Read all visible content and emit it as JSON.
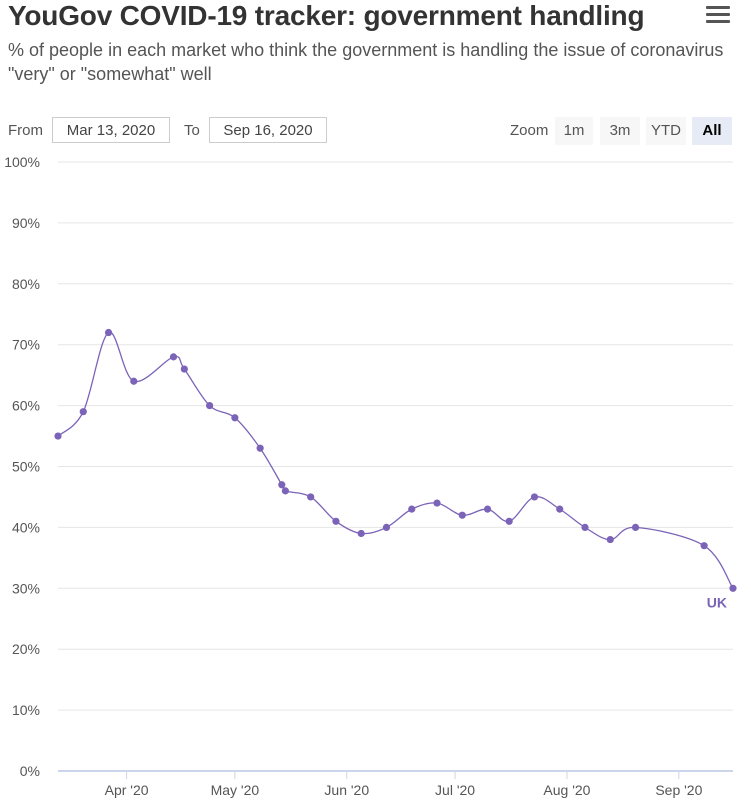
{
  "header": {
    "title": "YouGov COVID-19 tracker: government handling",
    "subtitle": "% of people in each market who think the government is handling the issue of coronavirus \"very\" or \"somewhat\" well",
    "menu_icon": "hamburger-menu-icon"
  },
  "range": {
    "from_label": "From",
    "from_value": "Mar 13, 2020",
    "to_label": "To",
    "to_value": "Sep 16, 2020"
  },
  "zoom": {
    "label": "Zoom",
    "buttons": [
      "1m",
      "3m",
      "YTD",
      "All"
    ],
    "active": "All"
  },
  "chart_data": {
    "type": "line",
    "title": "YouGov COVID-19 tracker: government handling",
    "subtitle": "% of people in each market who think the government is handling the issue of coronavirus \"very\" or \"somewhat\" well",
    "x_range": [
      "2020-03-13",
      "2020-09-16"
    ],
    "ylim": [
      0,
      100
    ],
    "y_ticks": [
      "0%",
      "10%",
      "20%",
      "30%",
      "40%",
      "50%",
      "60%",
      "70%",
      "80%",
      "90%",
      "100%"
    ],
    "x_ticks": [
      {
        "date": "2020-04-01",
        "label": "Apr '20"
      },
      {
        "date": "2020-05-01",
        "label": "May '20"
      },
      {
        "date": "2020-06-01",
        "label": "Jun '20"
      },
      {
        "date": "2020-07-01",
        "label": "Jul '20"
      },
      {
        "date": "2020-08-01",
        "label": "Aug '20"
      },
      {
        "date": "2020-09-01",
        "label": "Sep '20"
      }
    ],
    "grid": true,
    "series": [
      {
        "name": "UK",
        "color": "#7b63b8",
        "points": [
          {
            "x": "2020-03-13",
            "y": 55
          },
          {
            "x": "2020-03-20",
            "y": 59
          },
          {
            "x": "2020-03-27",
            "y": 72
          },
          {
            "x": "2020-04-03",
            "y": 64
          },
          {
            "x": "2020-04-14",
            "y": 68
          },
          {
            "x": "2020-04-17",
            "y": 66
          },
          {
            "x": "2020-04-24",
            "y": 60
          },
          {
            "x": "2020-05-01",
            "y": 58
          },
          {
            "x": "2020-05-08",
            "y": 53
          },
          {
            "x": "2020-05-14",
            "y": 47
          },
          {
            "x": "2020-05-15",
            "y": 46
          },
          {
            "x": "2020-05-22",
            "y": 45
          },
          {
            "x": "2020-05-29",
            "y": 41
          },
          {
            "x": "2020-06-05",
            "y": 39
          },
          {
            "x": "2020-06-12",
            "y": 40
          },
          {
            "x": "2020-06-19",
            "y": 43
          },
          {
            "x": "2020-06-26",
            "y": 44
          },
          {
            "x": "2020-07-03",
            "y": 42
          },
          {
            "x": "2020-07-10",
            "y": 43
          },
          {
            "x": "2020-07-16",
            "y": 41
          },
          {
            "x": "2020-07-23",
            "y": 45
          },
          {
            "x": "2020-07-30",
            "y": 43
          },
          {
            "x": "2020-08-06",
            "y": 40
          },
          {
            "x": "2020-08-13",
            "y": 38
          },
          {
            "x": "2020-08-20",
            "y": 40
          },
          {
            "x": "2020-09-08",
            "y": 37
          },
          {
            "x": "2020-09-16",
            "y": 30
          }
        ]
      }
    ]
  }
}
